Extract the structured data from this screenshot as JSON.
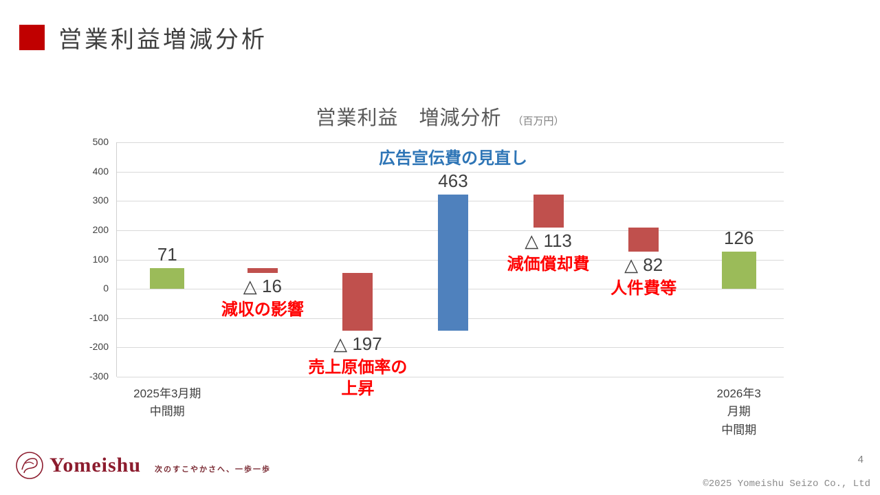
{
  "header": {
    "title": "営業利益増減分析"
  },
  "chart": {
    "title": "営業利益　増減分析",
    "unit": "（百万円）"
  },
  "chart_data": {
    "type": "bar",
    "subtype": "waterfall",
    "title": "営業利益　増減分析",
    "unit": "百万円",
    "ylim": [
      -300,
      500
    ],
    "yticks": [
      500,
      400,
      300,
      200,
      100,
      0,
      -100,
      -200,
      -300
    ],
    "grid": true,
    "categories": [
      "2025年3月期中間期",
      "減収の影響",
      "売上原価率の上昇",
      "広告宣伝費の見直し",
      "減価償却費",
      "人件費等",
      "2026年3月期中間期"
    ],
    "bars": [
      {
        "name": "2025年3月期中間期",
        "kind": "total",
        "start": 0,
        "end": 71,
        "value": 71,
        "value_text": "71",
        "color": "#9bbb59"
      },
      {
        "name": "減収の影響",
        "kind": "decrease",
        "start": 71,
        "end": 55,
        "value": -16,
        "value_text": "△ 16",
        "note": "減収の影響",
        "note_color": "#ff0000",
        "color": "#c0504d"
      },
      {
        "name": "売上原価率の上昇",
        "kind": "decrease",
        "start": 55,
        "end": -142,
        "value": -197,
        "value_text": "△ 197",
        "note": "売上原価率の\n上昇",
        "note_color": "#ff0000",
        "color": "#c0504d"
      },
      {
        "name": "広告宣伝費の見直し",
        "kind": "increase",
        "start": -142,
        "end": 321,
        "value": 463,
        "value_text": "463",
        "note": "広告宣伝費の見直し",
        "note_color": "#2e75b6",
        "color": "#4f81bd"
      },
      {
        "name": "減価償却費",
        "kind": "decrease",
        "start": 321,
        "end": 208,
        "value": -113,
        "value_text": "△ 113",
        "note": "減価償却費",
        "note_color": "#ff0000",
        "color": "#c0504d"
      },
      {
        "name": "人件費等",
        "kind": "decrease",
        "start": 208,
        "end": 126,
        "value": -82,
        "value_text": "△ 82",
        "note": "人件費等",
        "note_color": "#ff0000",
        "color": "#c0504d"
      },
      {
        "name": "2026年3月期中間期",
        "kind": "total",
        "start": 0,
        "end": 126,
        "value": 126,
        "value_text": "126",
        "color": "#9bbb59"
      }
    ],
    "x_axis_labels": [
      {
        "text": "2025年3月期\n中間期",
        "slot": 0
      },
      {
        "text": "2026年3月期\n中間期",
        "slot": 6
      }
    ]
  },
  "footer": {
    "brand": "Yomeishu",
    "tagline": "次のすこやかさへ、一歩一歩",
    "page_number": "4",
    "copyright": "©2025 Yomeishu Seizo Co., Ltd"
  }
}
